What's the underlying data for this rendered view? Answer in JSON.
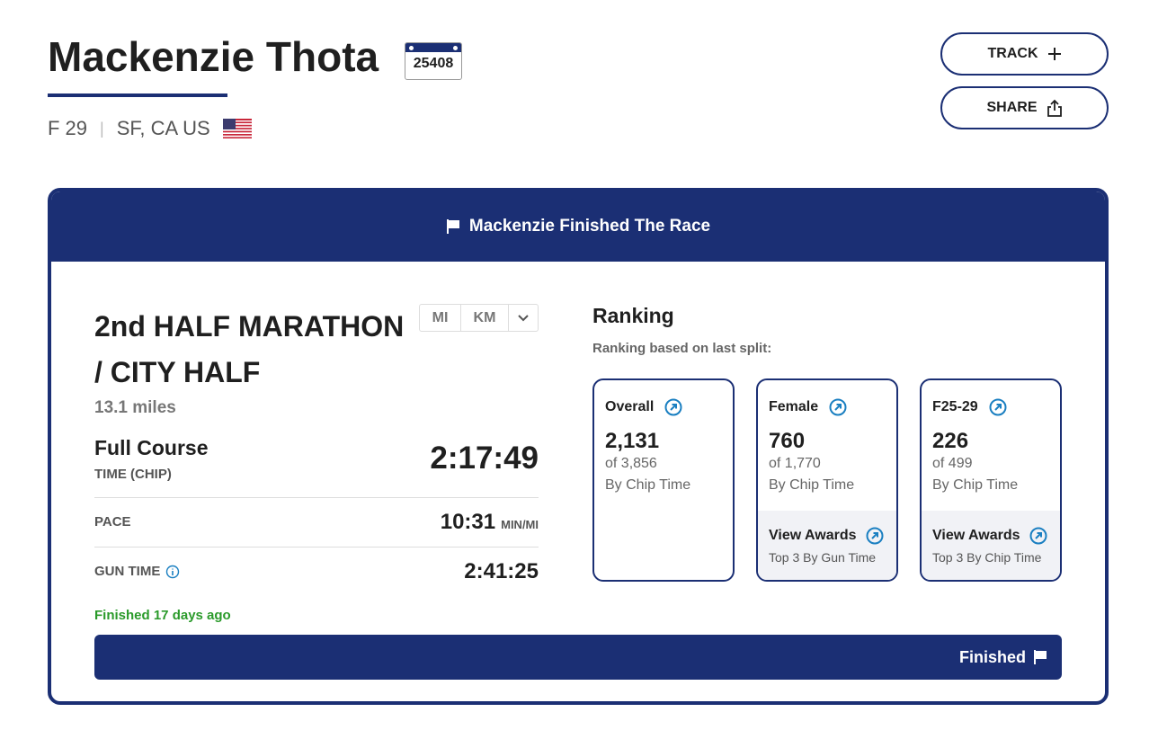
{
  "header": {
    "name": "Mackenzie Thota",
    "bib": "25408",
    "gender_age": "F 29",
    "location": "SF, CA US",
    "track": "TRACK",
    "share": "SHARE"
  },
  "banner": "Mackenzie Finished The Race",
  "race": {
    "title": "2nd HALF MARATHON / CITY HALF",
    "distance": "13.1 miles",
    "units": [
      "MI",
      "KM"
    ],
    "course": "Full Course",
    "time_label": "TIME (CHIP)",
    "time": "2:17:49",
    "pace_label": "PACE",
    "pace": "10:31",
    "pace_unit": "MIN/MI",
    "gun_label": "GUN TIME",
    "gun_time": "2:41:25",
    "finished_ago": "Finished 17 days ago",
    "status": "Finished"
  },
  "ranking": {
    "title": "Ranking",
    "subtitle": "Ranking based on last split:",
    "cards": [
      {
        "label": "Overall",
        "rank": "2,131",
        "of": "of 3,856",
        "by": "By Chip Time"
      },
      {
        "label": "Female",
        "rank": "760",
        "of": "of 1,770",
        "by": "By Chip Time",
        "awards": "View Awards",
        "awards_note": "Top 3 By Gun Time"
      },
      {
        "label": "F25-29",
        "rank": "226",
        "of": "of 499",
        "by": "By Chip Time",
        "awards": "View Awards",
        "awards_note": "Top 3 By Chip Time"
      }
    ]
  }
}
